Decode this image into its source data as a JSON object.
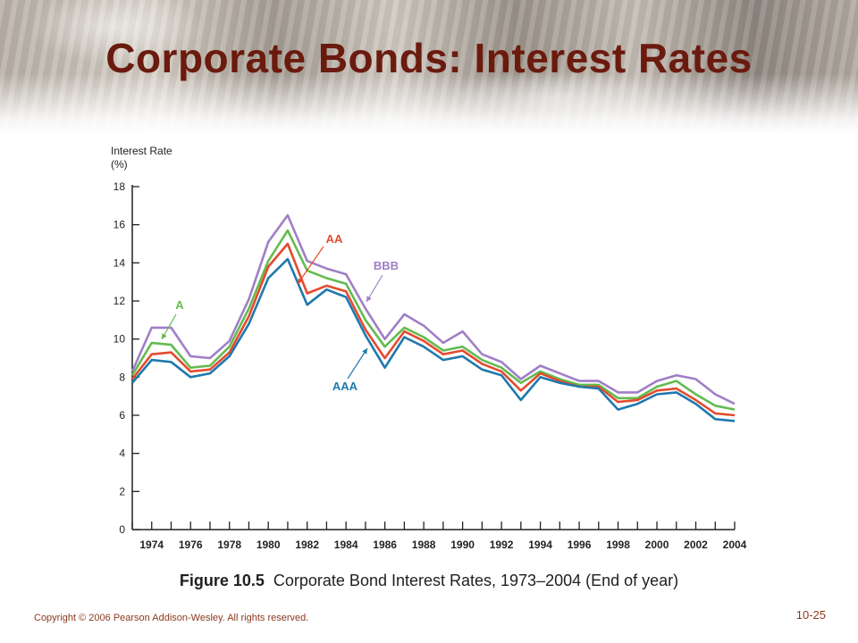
{
  "slide": {
    "title": "Corporate Bonds: Interest Rates",
    "caption_label": "Figure 10.5",
    "caption_text": "Corporate Bond Interest Rates, 1973–2004 (End of year)",
    "copyright": "Copyright © 2006 Pearson Addison-Wesley. All rights reserved.",
    "slide_number": "10-25"
  },
  "chart_data": {
    "type": "line",
    "ylabel": [
      "Interest Rate",
      "(%)"
    ],
    "x": [
      1973,
      1974,
      1975,
      1976,
      1977,
      1978,
      1979,
      1980,
      1981,
      1982,
      1983,
      1984,
      1985,
      1986,
      1987,
      1988,
      1989,
      1990,
      1991,
      1992,
      1993,
      1994,
      1995,
      1996,
      1997,
      1998,
      1999,
      2000,
      2001,
      2002,
      2003,
      2004
    ],
    "xlim": [
      1973,
      2004
    ],
    "ylim": [
      0,
      18
    ],
    "yticks": [
      0,
      2,
      4,
      6,
      8,
      10,
      12,
      14,
      16,
      18
    ],
    "xtick_labels": [
      1974,
      1976,
      1978,
      1980,
      1982,
      1984,
      1986,
      1988,
      1990,
      1992,
      1994,
      1996,
      1998,
      2000,
      2002,
      2004
    ],
    "grid": false,
    "series": [
      {
        "name": "AAA",
        "color": "#1f79ad",
        "values": [
          7.7,
          8.9,
          8.8,
          8.0,
          8.2,
          9.1,
          10.8,
          13.2,
          14.2,
          11.8,
          12.6,
          12.2,
          10.2,
          8.5,
          10.1,
          9.6,
          8.9,
          9.1,
          8.4,
          8.1,
          6.8,
          8.0,
          7.7,
          7.5,
          7.4,
          6.3,
          6.6,
          7.1,
          7.2,
          6.6,
          5.8,
          5.7
        ]
      },
      {
        "name": "AA",
        "color": "#e44b2e",
        "values": [
          7.9,
          9.2,
          9.3,
          8.3,
          8.4,
          9.3,
          11.2,
          13.8,
          15.0,
          12.4,
          12.8,
          12.5,
          10.5,
          9.0,
          10.4,
          9.9,
          9.2,
          9.4,
          8.7,
          8.3,
          7.3,
          8.2,
          7.8,
          7.5,
          7.5,
          6.7,
          6.8,
          7.3,
          7.4,
          6.8,
          6.1,
          6.0
        ]
      },
      {
        "name": "A",
        "color": "#63bb4f",
        "values": [
          8.1,
          9.8,
          9.7,
          8.5,
          8.6,
          9.6,
          11.6,
          14.1,
          15.7,
          13.6,
          13.2,
          12.9,
          11.0,
          9.6,
          10.6,
          10.1,
          9.4,
          9.6,
          8.9,
          8.5,
          7.7,
          8.3,
          7.9,
          7.6,
          7.6,
          6.9,
          6.9,
          7.5,
          7.8,
          7.1,
          6.5,
          6.3
        ]
      },
      {
        "name": "BBB",
        "color": "#a07fc6",
        "values": [
          8.3,
          10.6,
          10.6,
          9.1,
          9.0,
          9.9,
          12.1,
          15.1,
          16.5,
          14.1,
          13.7,
          13.4,
          11.6,
          10.0,
          11.3,
          10.7,
          9.8,
          10.4,
          9.2,
          8.8,
          7.9,
          8.6,
          8.2,
          7.8,
          7.8,
          7.2,
          7.2,
          7.8,
          8.1,
          7.9,
          7.1,
          6.6
        ]
      }
    ],
    "annotations": [
      {
        "series": "A",
        "text": "A",
        "color": "#63bb4f"
      },
      {
        "series": "AA",
        "text": "AA",
        "color": "#e44b2e"
      },
      {
        "series": "BBB",
        "text": "BBB",
        "color": "#a07fc6"
      },
      {
        "series": "AAA",
        "text": "AAA",
        "color": "#1f79ad"
      }
    ]
  }
}
